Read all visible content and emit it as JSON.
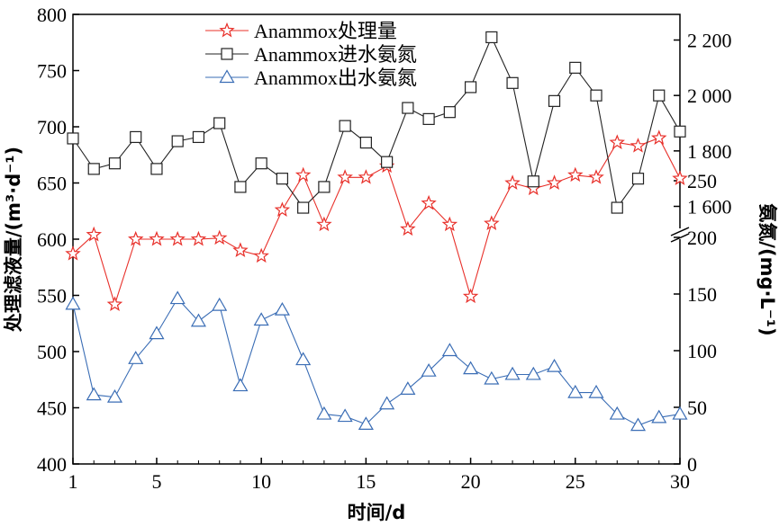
{
  "chart_data": {
    "type": "line",
    "xlabel": "时间/d",
    "ylabel_left": "处理滤液量/(m³·d⁻¹)",
    "ylabel_right": "氨氮/(mg·L⁻¹)",
    "xlim": [
      1,
      30
    ],
    "ylim_left": [
      400,
      800
    ],
    "x_ticks": [
      1,
      5,
      10,
      15,
      20,
      25,
      30
    ],
    "y_left_ticks": [
      400,
      450,
      500,
      550,
      600,
      650,
      700,
      750,
      800
    ],
    "y_right_upper_ticks": [
      "1 600",
      "1 800",
      "2 000",
      "2 200"
    ],
    "y_right_lower_ticks": [
      "0",
      "50",
      "100",
      "150",
      "200",
      "250"
    ],
    "right_axis_break": "between 250 and 1600 mg/L",
    "legend_position": "top-center",
    "colors": {
      "treatment": "#e8302a",
      "influent": "#222222",
      "effluent": "#3a6db5"
    },
    "x": [
      1,
      2,
      3,
      4,
      5,
      6,
      7,
      8,
      9,
      10,
      11,
      12,
      13,
      14,
      15,
      16,
      17,
      18,
      19,
      20,
      21,
      22,
      23,
      24,
      25,
      26,
      27,
      28,
      29,
      30
    ],
    "series": [
      {
        "name": "Anammox处理量",
        "axis": "left",
        "marker": "star",
        "values": [
          587,
          604,
          542,
          600,
          600,
          600,
          600,
          601,
          590,
          585,
          626,
          657,
          613,
          655,
          655,
          665,
          609,
          632,
          613,
          549,
          614,
          650,
          645,
          650,
          657,
          655,
          686,
          683,
          690,
          654
        ]
      },
      {
        "name": "Anammox进水氨氮",
        "axis": "right",
        "marker": "square",
        "values": [
          1845,
          1735,
          1755,
          1850,
          1735,
          1835,
          1850,
          1900,
          1670,
          1755,
          1700,
          1595,
          1670,
          1890,
          1830,
          1760,
          1955,
          1915,
          1940,
          2030,
          2210,
          2045,
          1690,
          1980,
          2100,
          2000,
          1595,
          1700,
          2000,
          1870
        ]
      },
      {
        "name": "Anammox出水氨氮",
        "axis": "right",
        "marker": "triangle",
        "values": [
          141,
          61,
          59,
          93,
          115,
          146,
          126,
          140,
          69,
          127,
          136,
          92,
          44,
          42,
          35,
          53,
          66,
          82,
          100,
          84,
          75,
          79,
          79,
          86,
          63,
          63,
          44,
          34,
          41,
          44
        ]
      }
    ]
  }
}
